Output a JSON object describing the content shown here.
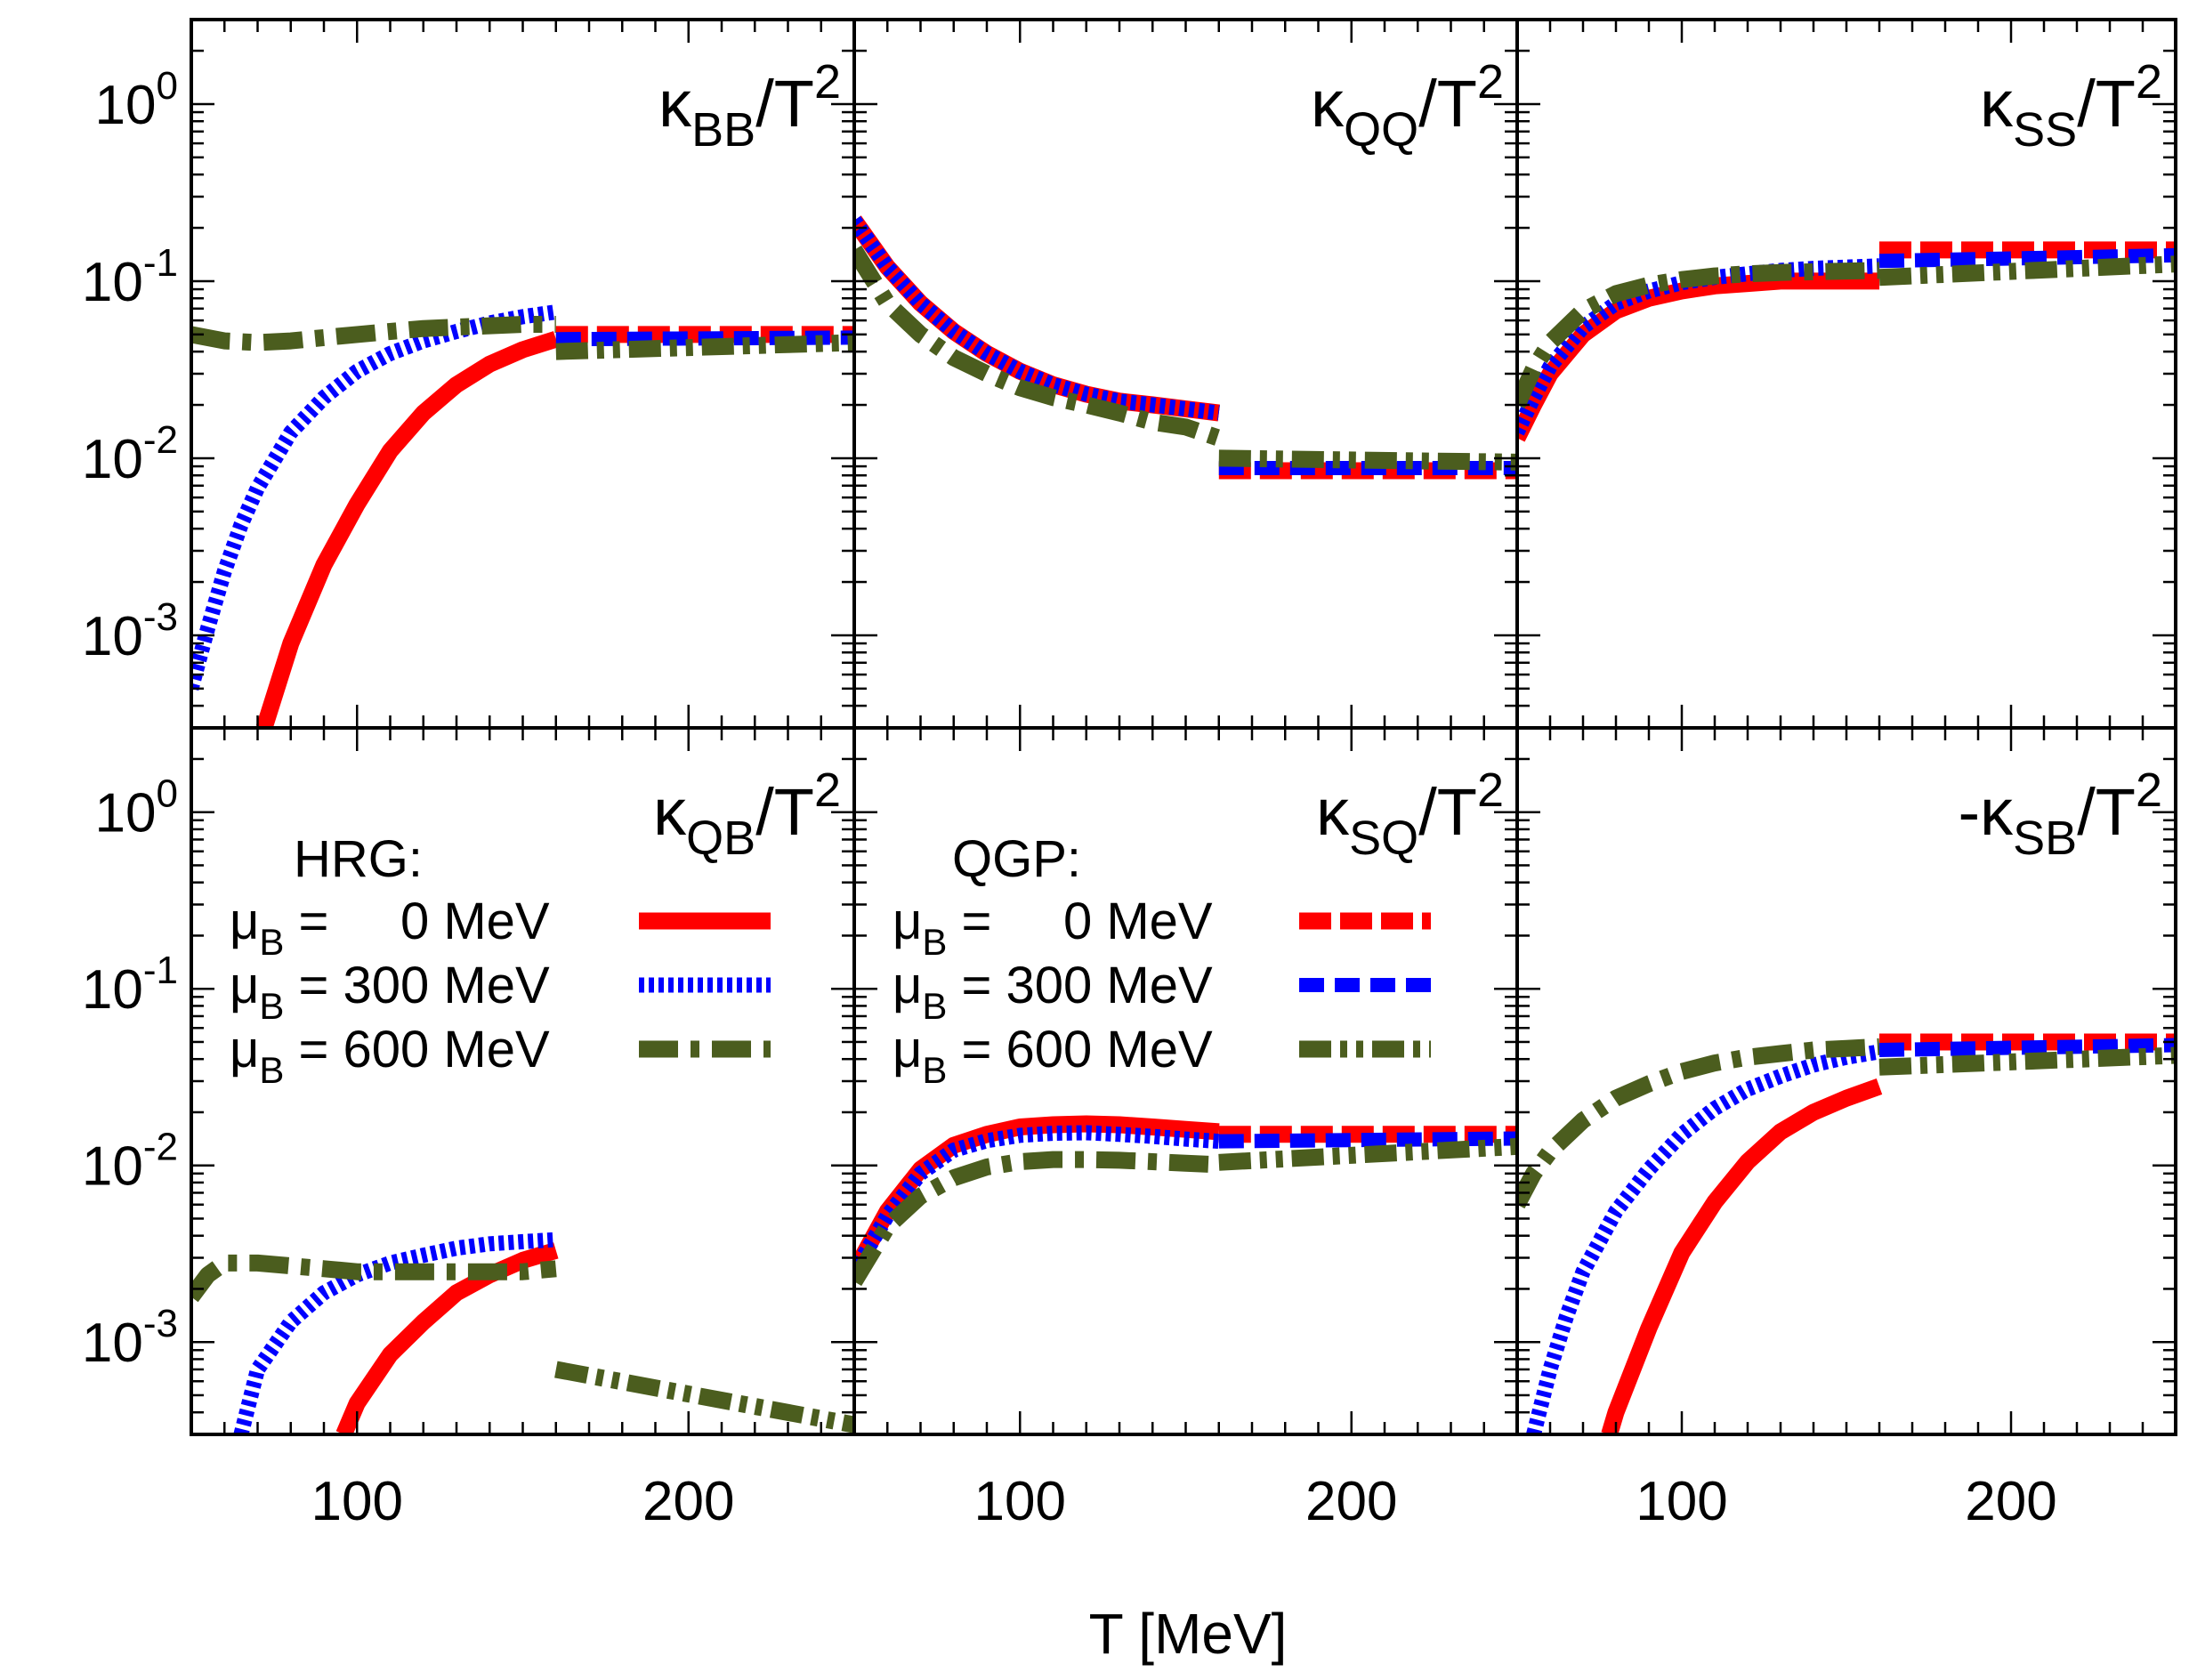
{
  "figure": {
    "xlabel": "T [MeV]",
    "legend_hrg": {
      "title": "HRG:",
      "entries": [
        {
          "pre": "μ",
          "sub": "B",
          "post": " =     0 MeV",
          "series": "HRG 0 MeV"
        },
        {
          "pre": "μ",
          "sub": "B",
          "post": " = 300 MeV",
          "series": "HRG 300 MeV"
        },
        {
          "pre": "μ",
          "sub": "B",
          "post": " = 600 MeV",
          "series": "HRG 600 MeV"
        }
      ]
    },
    "legend_qgp": {
      "title": "QGP:",
      "entries": [
        {
          "pre": "μ",
          "sub": "B",
          "post": " =     0 MeV",
          "series": "QGP 0 MeV"
        },
        {
          "pre": "μ",
          "sub": "B",
          "post": " = 300 MeV",
          "series": "QGP 300 MeV"
        },
        {
          "pre": "μ",
          "sub": "B",
          "post": " = 600 MeV",
          "series": "QGP 600 MeV"
        }
      ]
    }
  },
  "colors": {
    "red": "#ff0000",
    "blue": "#0000ff",
    "green": "#4b5d1e",
    "axis": "#000000"
  },
  "chart_data": [
    {
      "type": "line",
      "panel": "top-left",
      "title": {
        "base": "κ",
        "sub": "BB",
        "rest": "/T",
        "sup": "2"
      },
      "xlabel": "T [MeV]",
      "xlim": [
        50,
        250
      ],
      "ylim": [
        0.0003,
        3
      ],
      "yscale": "log",
      "xticks": [
        100,
        200
      ],
      "yticks": [
        {
          "base": "10",
          "exp": "0"
        },
        {
          "base": "10",
          "exp": "-1"
        },
        {
          "base": "10",
          "exp": "-2"
        },
        {
          "base": "10",
          "exp": "-3"
        }
      ],
      "series": [
        {
          "name": "HRG 0 MeV",
          "x": [
            72,
            80,
            90,
            100,
            110,
            120,
            130,
            140,
            150,
            160
          ],
          "y": [
            0.0003,
            0.0009,
            0.0025,
            0.0055,
            0.011,
            0.018,
            0.026,
            0.034,
            0.041,
            0.047
          ]
        },
        {
          "name": "HRG 300 MeV",
          "x": [
            50,
            55,
            60,
            65,
            70,
            80,
            90,
            100,
            110,
            120,
            130,
            140,
            150,
            160
          ],
          "y": [
            0.0005,
            0.0011,
            0.0023,
            0.0042,
            0.0068,
            0.014,
            0.022,
            0.031,
            0.039,
            0.046,
            0.052,
            0.058,
            0.063,
            0.067
          ]
        },
        {
          "name": "HRG 600 MeV",
          "x": [
            50,
            60,
            70,
            80,
            90,
            100,
            110,
            120,
            130,
            140,
            150,
            160
          ],
          "y": [
            0.05,
            0.046,
            0.045,
            0.046,
            0.048,
            0.05,
            0.052,
            0.054,
            0.055,
            0.056,
            0.057,
            0.057
          ]
        },
        {
          "name": "QGP 0 MeV",
          "x": [
            160,
            250
          ],
          "y": [
            0.05,
            0.05
          ]
        },
        {
          "name": "QGP 300 MeV",
          "x": [
            160,
            250
          ],
          "y": [
            0.047,
            0.048
          ]
        },
        {
          "name": "QGP 600 MeV",
          "x": [
            160,
            250
          ],
          "y": [
            0.04,
            0.045
          ]
        }
      ]
    },
    {
      "type": "line",
      "panel": "top-middle",
      "title": {
        "base": "κ",
        "sub": "QQ",
        "rest": "/T",
        "sup": "2"
      },
      "xlabel": "T [MeV]",
      "xlim": [
        50,
        250
      ],
      "ylim": [
        0.0003,
        3
      ],
      "yscale": "log",
      "xticks": [
        100,
        200
      ],
      "yticks": [],
      "series": [
        {
          "name": "HRG 0 MeV",
          "x": [
            50,
            60,
            70,
            80,
            90,
            100,
            110,
            120,
            130,
            140,
            150,
            160
          ],
          "y": [
            0.22,
            0.12,
            0.075,
            0.052,
            0.039,
            0.031,
            0.026,
            0.023,
            0.021,
            0.02,
            0.019,
            0.018
          ]
        },
        {
          "name": "HRG 300 MeV",
          "x": [
            50,
            60,
            70,
            80,
            90,
            100,
            110,
            120,
            130,
            140,
            150,
            160
          ],
          "y": [
            0.22,
            0.12,
            0.075,
            0.052,
            0.039,
            0.031,
            0.026,
            0.023,
            0.021,
            0.02,
            0.019,
            0.018
          ]
        },
        {
          "name": "HRG 600 MeV",
          "x": [
            50,
            60,
            70,
            80,
            90,
            100,
            110,
            120,
            130,
            140,
            150,
            160
          ],
          "y": [
            0.15,
            0.075,
            0.05,
            0.037,
            0.03,
            0.025,
            0.022,
            0.02,
            0.018,
            0.016,
            0.015,
            0.013
          ]
        },
        {
          "name": "QGP 0 MeV",
          "x": [
            160,
            250
          ],
          "y": [
            0.0085,
            0.0085
          ]
        },
        {
          "name": "QGP 300 MeV",
          "x": [
            160,
            250
          ],
          "y": [
            0.0088,
            0.0088
          ]
        },
        {
          "name": "QGP 600 MeV",
          "x": [
            160,
            250
          ],
          "y": [
            0.01,
            0.0095
          ]
        }
      ]
    },
    {
      "type": "line",
      "panel": "top-right",
      "title": {
        "base": "κ",
        "sub": "SS",
        "rest": "/T",
        "sup": "2"
      },
      "xlabel": "T [MeV]",
      "xlim": [
        50,
        250
      ],
      "ylim": [
        0.0003,
        3
      ],
      "yscale": "log",
      "xticks": [
        100,
        200
      ],
      "yticks": [],
      "series": [
        {
          "name": "HRG 0 MeV",
          "x": [
            50,
            55,
            60,
            70,
            80,
            90,
            100,
            110,
            120,
            130,
            140,
            150,
            160
          ],
          "y": [
            0.013,
            0.02,
            0.03,
            0.05,
            0.068,
            0.08,
            0.088,
            0.094,
            0.097,
            0.1,
            0.1,
            0.1,
            0.1
          ]
        },
        {
          "name": "HRG 300 MeV",
          "x": [
            50,
            55,
            60,
            70,
            80,
            90,
            100,
            110,
            120,
            130,
            140,
            150,
            160
          ],
          "y": [
            0.014,
            0.022,
            0.033,
            0.055,
            0.075,
            0.088,
            0.098,
            0.105,
            0.11,
            0.115,
            0.118,
            0.12,
            0.122
          ]
        },
        {
          "name": "HRG 600 MeV",
          "x": [
            50,
            55,
            60,
            70,
            80,
            90,
            100,
            110,
            120,
            130,
            140,
            150,
            160
          ],
          "y": [
            0.02,
            0.032,
            0.045,
            0.068,
            0.085,
            0.095,
            0.102,
            0.107,
            0.11,
            0.112,
            0.113,
            0.114,
            0.115
          ]
        },
        {
          "name": "QGP 0 MeV",
          "x": [
            160,
            250
          ],
          "y": [
            0.15,
            0.15
          ]
        },
        {
          "name": "QGP 300 MeV",
          "x": [
            160,
            250
          ],
          "y": [
            0.13,
            0.14
          ]
        },
        {
          "name": "QGP 600 MeV",
          "x": [
            160,
            250
          ],
          "y": [
            0.105,
            0.125
          ]
        }
      ]
    },
    {
      "type": "line",
      "panel": "bottom-left",
      "title": {
        "base": "κ",
        "sub": "QB",
        "rest": "/T",
        "sup": "2"
      },
      "xlabel": "T [MeV]",
      "xlim": [
        50,
        250
      ],
      "ylim": [
        0.0003,
        3
      ],
      "yscale": "log",
      "xticks": [
        100,
        200
      ],
      "yticks": [
        {
          "base": "10",
          "exp": "0"
        },
        {
          "base": "10",
          "exp": "-1"
        },
        {
          "base": "10",
          "exp": "-2"
        },
        {
          "base": "10",
          "exp": "-3"
        }
      ],
      "series": [
        {
          "name": "HRG 0 MeV",
          "x": [
            96,
            100,
            110,
            120,
            130,
            140,
            150,
            160
          ],
          "y": [
            0.0003,
            0.00045,
            0.00085,
            0.0013,
            0.0019,
            0.0024,
            0.0029,
            0.0033
          ]
        },
        {
          "name": "HRG 300 MeV",
          "x": [
            65,
            70,
            80,
            90,
            100,
            110,
            120,
            130,
            140,
            150,
            160
          ],
          "y": [
            0.0003,
            0.0007,
            0.0013,
            0.0019,
            0.0024,
            0.0028,
            0.0031,
            0.0034,
            0.0036,
            0.0037,
            0.0038
          ]
        },
        {
          "name": "HRG 600 MeV",
          "x": [
            50,
            55,
            60,
            65,
            70,
            80,
            90,
            100,
            110,
            120,
            130,
            140,
            150,
            160
          ],
          "y": [
            0.0018,
            0.0024,
            0.0028,
            0.0028,
            0.0028,
            0.0027,
            0.0026,
            0.0025,
            0.0025,
            0.0025,
            0.0025,
            0.0025,
            0.0025,
            0.0026
          ]
        },
        {
          "name": "QGP 600 MeV",
          "x": [
            160,
            250
          ],
          "y": [
            0.0007,
            0.00034
          ]
        }
      ]
    },
    {
      "type": "line",
      "panel": "bottom-middle",
      "title": {
        "base": "κ",
        "sub": "SQ",
        "rest": "/T",
        "sup": "2"
      },
      "xlabel": "T [MeV]",
      "xlim": [
        50,
        250
      ],
      "ylim": [
        0.0003,
        3
      ],
      "yscale": "log",
      "xticks": [
        100,
        200
      ],
      "yticks": [],
      "series": [
        {
          "name": "HRG 0 MeV",
          "x": [
            50,
            60,
            70,
            80,
            90,
            100,
            110,
            120,
            130,
            140,
            150,
            160
          ],
          "y": [
            0.0025,
            0.0055,
            0.0095,
            0.013,
            0.015,
            0.0165,
            0.017,
            0.0172,
            0.017,
            0.0165,
            0.016,
            0.0155
          ]
        },
        {
          "name": "HRG 300 MeV",
          "x": [
            50,
            60,
            70,
            80,
            90,
            100,
            110,
            120,
            130,
            140,
            150,
            160
          ],
          "y": [
            0.0025,
            0.0052,
            0.009,
            0.0122,
            0.0138,
            0.0148,
            0.0152,
            0.0153,
            0.015,
            0.0146,
            0.0141,
            0.0137
          ]
        },
        {
          "name": "HRG 600 MeV",
          "x": [
            50,
            60,
            70,
            80,
            90,
            100,
            110,
            120,
            130,
            140,
            150,
            160
          ],
          "y": [
            0.0022,
            0.0045,
            0.0067,
            0.0085,
            0.0098,
            0.0105,
            0.0108,
            0.0108,
            0.0107,
            0.0105,
            0.0103,
            0.0101
          ]
        },
        {
          "name": "QGP 0 MeV",
          "x": [
            160,
            250
          ],
          "y": [
            0.015,
            0.015
          ]
        },
        {
          "name": "QGP 300 MeV",
          "x": [
            160,
            250
          ],
          "y": [
            0.0137,
            0.0142
          ]
        },
        {
          "name": "QGP 600 MeV",
          "x": [
            160,
            250
          ],
          "y": [
            0.0104,
            0.0128
          ]
        }
      ]
    },
    {
      "type": "line",
      "panel": "bottom-right",
      "title": {
        "base": "-κ",
        "sub": "SB",
        "rest": "/T",
        "sup": "2"
      },
      "xlabel": "T [MeV]",
      "xlim": [
        50,
        250
      ],
      "ylim": [
        0.0003,
        3
      ],
      "yscale": "log",
      "xticks": [
        100,
        200
      ],
      "yticks": [],
      "series": [
        {
          "name": "HRG 0 MeV",
          "x": [
            78,
            80,
            90,
            100,
            110,
            120,
            130,
            140,
            150,
            160
          ],
          "y": [
            0.0003,
            0.0004,
            0.0012,
            0.0032,
            0.0062,
            0.0105,
            0.0155,
            0.02,
            0.024,
            0.028
          ]
        },
        {
          "name": "HRG 300 MeV",
          "x": [
            55,
            60,
            65,
            70,
            80,
            90,
            100,
            110,
            120,
            130,
            140,
            150,
            160
          ],
          "y": [
            0.0003,
            0.0007,
            0.0014,
            0.0025,
            0.0055,
            0.0095,
            0.015,
            0.021,
            0.027,
            0.032,
            0.037,
            0.041,
            0.044
          ]
        },
        {
          "name": "HRG 600 MeV",
          "x": [
            50,
            55,
            60,
            70,
            80,
            90,
            100,
            110,
            120,
            130,
            140,
            150,
            160
          ],
          "y": [
            0.006,
            0.009,
            0.012,
            0.018,
            0.024,
            0.029,
            0.034,
            0.038,
            0.041,
            0.043,
            0.045,
            0.046,
            0.047
          ]
        },
        {
          "name": "QGP 0 MeV",
          "x": [
            160,
            250
          ],
          "y": [
            0.05,
            0.05
          ]
        },
        {
          "name": "QGP 300 MeV",
          "x": [
            160,
            250
          ],
          "y": [
            0.045,
            0.048
          ]
        },
        {
          "name": "QGP 600 MeV",
          "x": [
            160,
            250
          ],
          "y": [
            0.036,
            0.042
          ]
        }
      ]
    }
  ]
}
